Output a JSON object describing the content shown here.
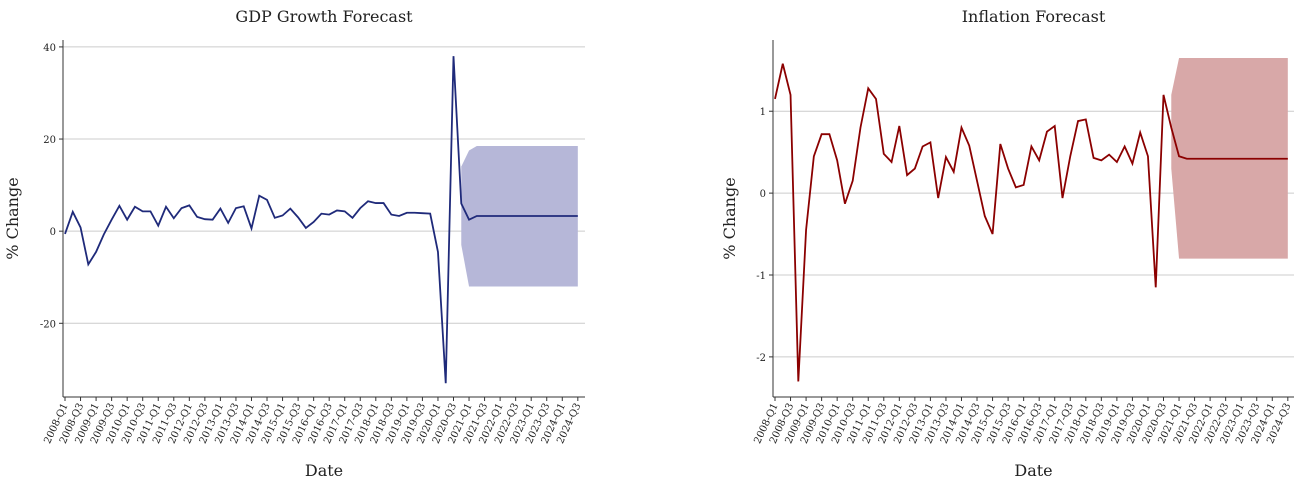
{
  "chart_data": [
    {
      "type": "line",
      "title": "GDP Growth Forecast",
      "x_label": "Date",
      "y_label": "% Change",
      "categories": [
        "2008-Q1",
        null,
        "2008-Q3",
        null,
        "2009-Q1",
        null,
        "2009-Q3",
        null,
        "2010-Q1",
        null,
        "2010-Q3",
        null,
        "2011-Q1",
        null,
        "2011-Q3",
        null,
        "2012-Q1",
        null,
        "2012-Q3",
        null,
        "2013-Q1",
        null,
        "2013-Q3",
        null,
        "2014-Q1",
        null,
        "2014-Q3",
        null,
        "2015-Q1",
        null,
        "2015-Q3",
        null,
        "2016-Q1",
        null,
        "2016-Q3",
        null,
        "2017-Q1",
        null,
        "2017-Q3",
        null,
        "2018-Q1",
        null,
        "2018-Q3",
        null,
        "2019-Q1",
        null,
        "2019-Q3",
        null,
        "2020-Q1",
        null,
        "2020-Q3",
        null,
        "2021-Q1",
        null,
        "2021-Q3",
        null,
        "2022-Q1",
        null,
        "2022-Q3",
        null,
        "2023-Q1",
        null,
        "2023-Q3",
        null,
        "2024-Q1",
        null,
        "2024-Q3"
      ],
      "series": [
        {
          "color": "#1f2a7a",
          "values": [
            -0.6,
            4.2,
            0.8,
            -7.2,
            -4.5,
            -0.7,
            2.5,
            5.5,
            2.5,
            5.3,
            4.3,
            4.3,
            1.2,
            5.3,
            2.8,
            5.0,
            5.6,
            3.1,
            2.6,
            2.5,
            4.9,
            1.8,
            5.0,
            5.4,
            0.6,
            7.7,
            6.8,
            2.9,
            3.4,
            4.9,
            3.0,
            0.7,
            2.0,
            3.8,
            3.6,
            4.5,
            4.3,
            2.9,
            5.0,
            6.5,
            6.1,
            6.1,
            3.6,
            3.3,
            4.0,
            4.0,
            3.9,
            3.8,
            -4.5,
            -33,
            38,
            6,
            2.5,
            3.3,
            3.3,
            3.3,
            3.3,
            3.3,
            3.3,
            3.3,
            3.3,
            3.3,
            3.3,
            3.3,
            3.3,
            3.3,
            3.3
          ]
        }
      ],
      "band": {
        "color": "#b6b7d8",
        "lower": [
          null,
          null,
          null,
          null,
          null,
          null,
          null,
          null,
          null,
          null,
          null,
          null,
          null,
          null,
          null,
          null,
          null,
          null,
          null,
          null,
          null,
          null,
          null,
          null,
          null,
          null,
          null,
          null,
          null,
          null,
          null,
          null,
          null,
          null,
          null,
          null,
          null,
          null,
          null,
          null,
          null,
          null,
          null,
          null,
          null,
          null,
          null,
          null,
          null,
          null,
          null,
          -3,
          -12,
          -12,
          -12,
          -12,
          -12,
          -12,
          -12,
          -12,
          -12,
          -12,
          -12,
          -12,
          -12,
          -12,
          -12
        ],
        "upper": [
          null,
          null,
          null,
          null,
          null,
          null,
          null,
          null,
          null,
          null,
          null,
          null,
          null,
          null,
          null,
          null,
          null,
          null,
          null,
          null,
          null,
          null,
          null,
          null,
          null,
          null,
          null,
          null,
          null,
          null,
          null,
          null,
          null,
          null,
          null,
          null,
          null,
          null,
          null,
          null,
          null,
          null,
          null,
          null,
          null,
          null,
          null,
          null,
          null,
          null,
          null,
          14,
          17.5,
          18.5,
          18.5,
          18.5,
          18.5,
          18.5,
          18.5,
          18.5,
          18.5,
          18.5,
          18.5,
          18.5,
          18.5,
          18.5,
          18.5
        ]
      },
      "ylim": [
        -36,
        41.5
      ],
      "yticks": [
        -20,
        0,
        20,
        40
      ],
      "grid": true
    },
    {
      "type": "line",
      "title": "Inflation Forecast",
      "x_label": "Date",
      "y_label": "% Change",
      "categories": [
        "2008-Q1",
        null,
        "2008-Q3",
        null,
        "2009-Q1",
        null,
        "2009-Q3",
        null,
        "2010-Q1",
        null,
        "2010-Q3",
        null,
        "2011-Q1",
        null,
        "2011-Q3",
        null,
        "2012-Q1",
        null,
        "2012-Q3",
        null,
        "2013-Q1",
        null,
        "2013-Q3",
        null,
        "2014-Q1",
        null,
        "2014-Q3",
        null,
        "2015-Q1",
        null,
        "2015-Q3",
        null,
        "2016-Q1",
        null,
        "2016-Q3",
        null,
        "2017-Q1",
        null,
        "2017-Q3",
        null,
        "2018-Q1",
        null,
        "2018-Q3",
        null,
        "2019-Q1",
        null,
        "2019-Q3",
        null,
        "2020-Q1",
        null,
        "2020-Q3",
        null,
        "2021-Q1",
        null,
        "2021-Q3",
        null,
        "2022-Q1",
        null,
        "2022-Q3",
        null,
        "2023-Q1",
        null,
        "2023-Q3",
        null,
        "2024-Q1",
        null,
        "2024-Q3"
      ],
      "series": [
        {
          "color": "#8b0000",
          "values": [
            1.15,
            1.58,
            1.2,
            -2.3,
            -0.45,
            0.45,
            0.72,
            0.72,
            0.4,
            -0.13,
            0.15,
            0.8,
            1.28,
            1.15,
            0.48,
            0.38,
            0.82,
            0.22,
            0.3,
            0.57,
            0.62,
            -0.06,
            0.44,
            0.26,
            0.8,
            0.58,
            0.15,
            -0.28,
            -0.5,
            0.6,
            0.3,
            0.07,
            0.1,
            0.57,
            0.4,
            0.75,
            0.82,
            -0.06,
            0.45,
            0.88,
            0.9,
            0.43,
            0.4,
            0.47,
            0.38,
            0.57,
            0.36,
            0.74,
            0.45,
            -1.15,
            1.2,
            0.8,
            0.45,
            0.42,
            0.42,
            0.42,
            0.42,
            0.42,
            0.42,
            0.42,
            0.42,
            0.42,
            0.42,
            0.42,
            0.42,
            0.42,
            0.42
          ]
        }
      ],
      "band": {
        "color": "#d8a8a8",
        "lower": [
          null,
          null,
          null,
          null,
          null,
          null,
          null,
          null,
          null,
          null,
          null,
          null,
          null,
          null,
          null,
          null,
          null,
          null,
          null,
          null,
          null,
          null,
          null,
          null,
          null,
          null,
          null,
          null,
          null,
          null,
          null,
          null,
          null,
          null,
          null,
          null,
          null,
          null,
          null,
          null,
          null,
          null,
          null,
          null,
          null,
          null,
          null,
          null,
          null,
          null,
          null,
          0.3,
          -0.8,
          -0.8,
          -0.8,
          -0.8,
          -0.8,
          -0.8,
          -0.8,
          -0.8,
          -0.8,
          -0.8,
          -0.8,
          -0.8,
          -0.8,
          -0.8,
          -0.8
        ],
        "upper": [
          null,
          null,
          null,
          null,
          null,
          null,
          null,
          null,
          null,
          null,
          null,
          null,
          null,
          null,
          null,
          null,
          null,
          null,
          null,
          null,
          null,
          null,
          null,
          null,
          null,
          null,
          null,
          null,
          null,
          null,
          null,
          null,
          null,
          null,
          null,
          null,
          null,
          null,
          null,
          null,
          null,
          null,
          null,
          null,
          null,
          null,
          null,
          null,
          null,
          null,
          null,
          1.2,
          1.65,
          1.65,
          1.65,
          1.65,
          1.65,
          1.65,
          1.65,
          1.65,
          1.65,
          1.65,
          1.65,
          1.65,
          1.65,
          1.65,
          1.65
        ]
      },
      "ylim": [
        -2.49,
        1.87
      ],
      "yticks": [
        -2,
        -1,
        0,
        1
      ],
      "grid": true
    }
  ]
}
